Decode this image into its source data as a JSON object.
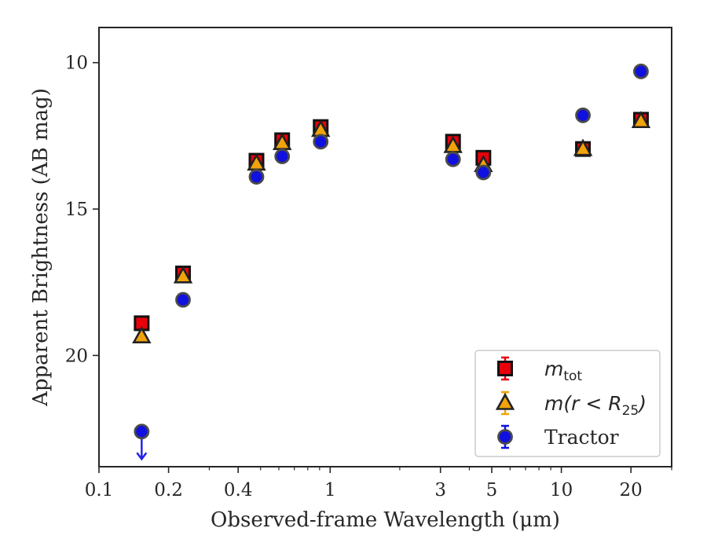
{
  "chart_data": {
    "type": "scatter",
    "title": "",
    "xlabel": "Observed-frame Wavelength (μm)",
    "ylabel": "Apparent Brightness (AB mag)",
    "xscale": "log",
    "xlim": [
      0.1,
      30
    ],
    "ylim": [
      23.8,
      8.8
    ],
    "y_inverted": true,
    "x_ticks": [
      {
        "value": 0.1,
        "label": "0.1"
      },
      {
        "value": 0.2,
        "label": "0.2"
      },
      {
        "value": 0.4,
        "label": "0.4"
      },
      {
        "value": 1,
        "label": "1"
      },
      {
        "value": 3,
        "label": "3"
      },
      {
        "value": 5,
        "label": "5"
      },
      {
        "value": 10,
        "label": "10"
      },
      {
        "value": 20,
        "label": "20"
      }
    ],
    "y_ticks": [
      {
        "value": 10,
        "label": "10"
      },
      {
        "value": 15,
        "label": "15"
      },
      {
        "value": 20,
        "label": "20"
      }
    ],
    "legend_position": "lower-right",
    "series": [
      {
        "name": "m_tot",
        "legend_main": "m",
        "legend_sub": "tot",
        "marker": "square",
        "color": "#e8000b",
        "points": [
          {
            "x": 0.153,
            "y": 18.9
          },
          {
            "x": 0.231,
            "y": 17.2
          },
          {
            "x": 0.48,
            "y": 13.35
          },
          {
            "x": 0.62,
            "y": 12.65
          },
          {
            "x": 0.91,
            "y": 12.2
          },
          {
            "x": 3.4,
            "y": 12.7
          },
          {
            "x": 4.6,
            "y": 13.25
          },
          {
            "x": 12.4,
            "y": 12.95
          },
          {
            "x": 22.1,
            "y": 11.95
          }
        ]
      },
      {
        "name": "m(r < R25)",
        "legend_main": "m(r < R",
        "legend_sub": "25",
        "legend_tail": ")",
        "marker": "triangle",
        "color": "#f0a30a",
        "points": [
          {
            "x": 0.153,
            "y": 19.35
          },
          {
            "x": 0.231,
            "y": 17.3
          },
          {
            "x": 0.48,
            "y": 13.45
          },
          {
            "x": 0.62,
            "y": 12.75
          },
          {
            "x": 0.91,
            "y": 12.3
          },
          {
            "x": 3.4,
            "y": 12.85
          },
          {
            "x": 4.6,
            "y": 13.5
          },
          {
            "x": 12.4,
            "y": 12.95
          },
          {
            "x": 22.1,
            "y": 12.0
          }
        ]
      },
      {
        "name": "Tractor",
        "legend_main": "Tractor",
        "marker": "circle",
        "color": "#1010e0",
        "points": [
          {
            "x": 0.153,
            "y": 22.6,
            "upper_limit": true
          },
          {
            "x": 0.231,
            "y": 18.1
          },
          {
            "x": 0.48,
            "y": 13.9
          },
          {
            "x": 0.62,
            "y": 13.2
          },
          {
            "x": 0.91,
            "y": 12.7
          },
          {
            "x": 3.4,
            "y": 13.3
          },
          {
            "x": 4.6,
            "y": 13.75
          },
          {
            "x": 12.4,
            "y": 11.8
          },
          {
            "x": 22.1,
            "y": 10.3
          }
        ]
      }
    ]
  }
}
